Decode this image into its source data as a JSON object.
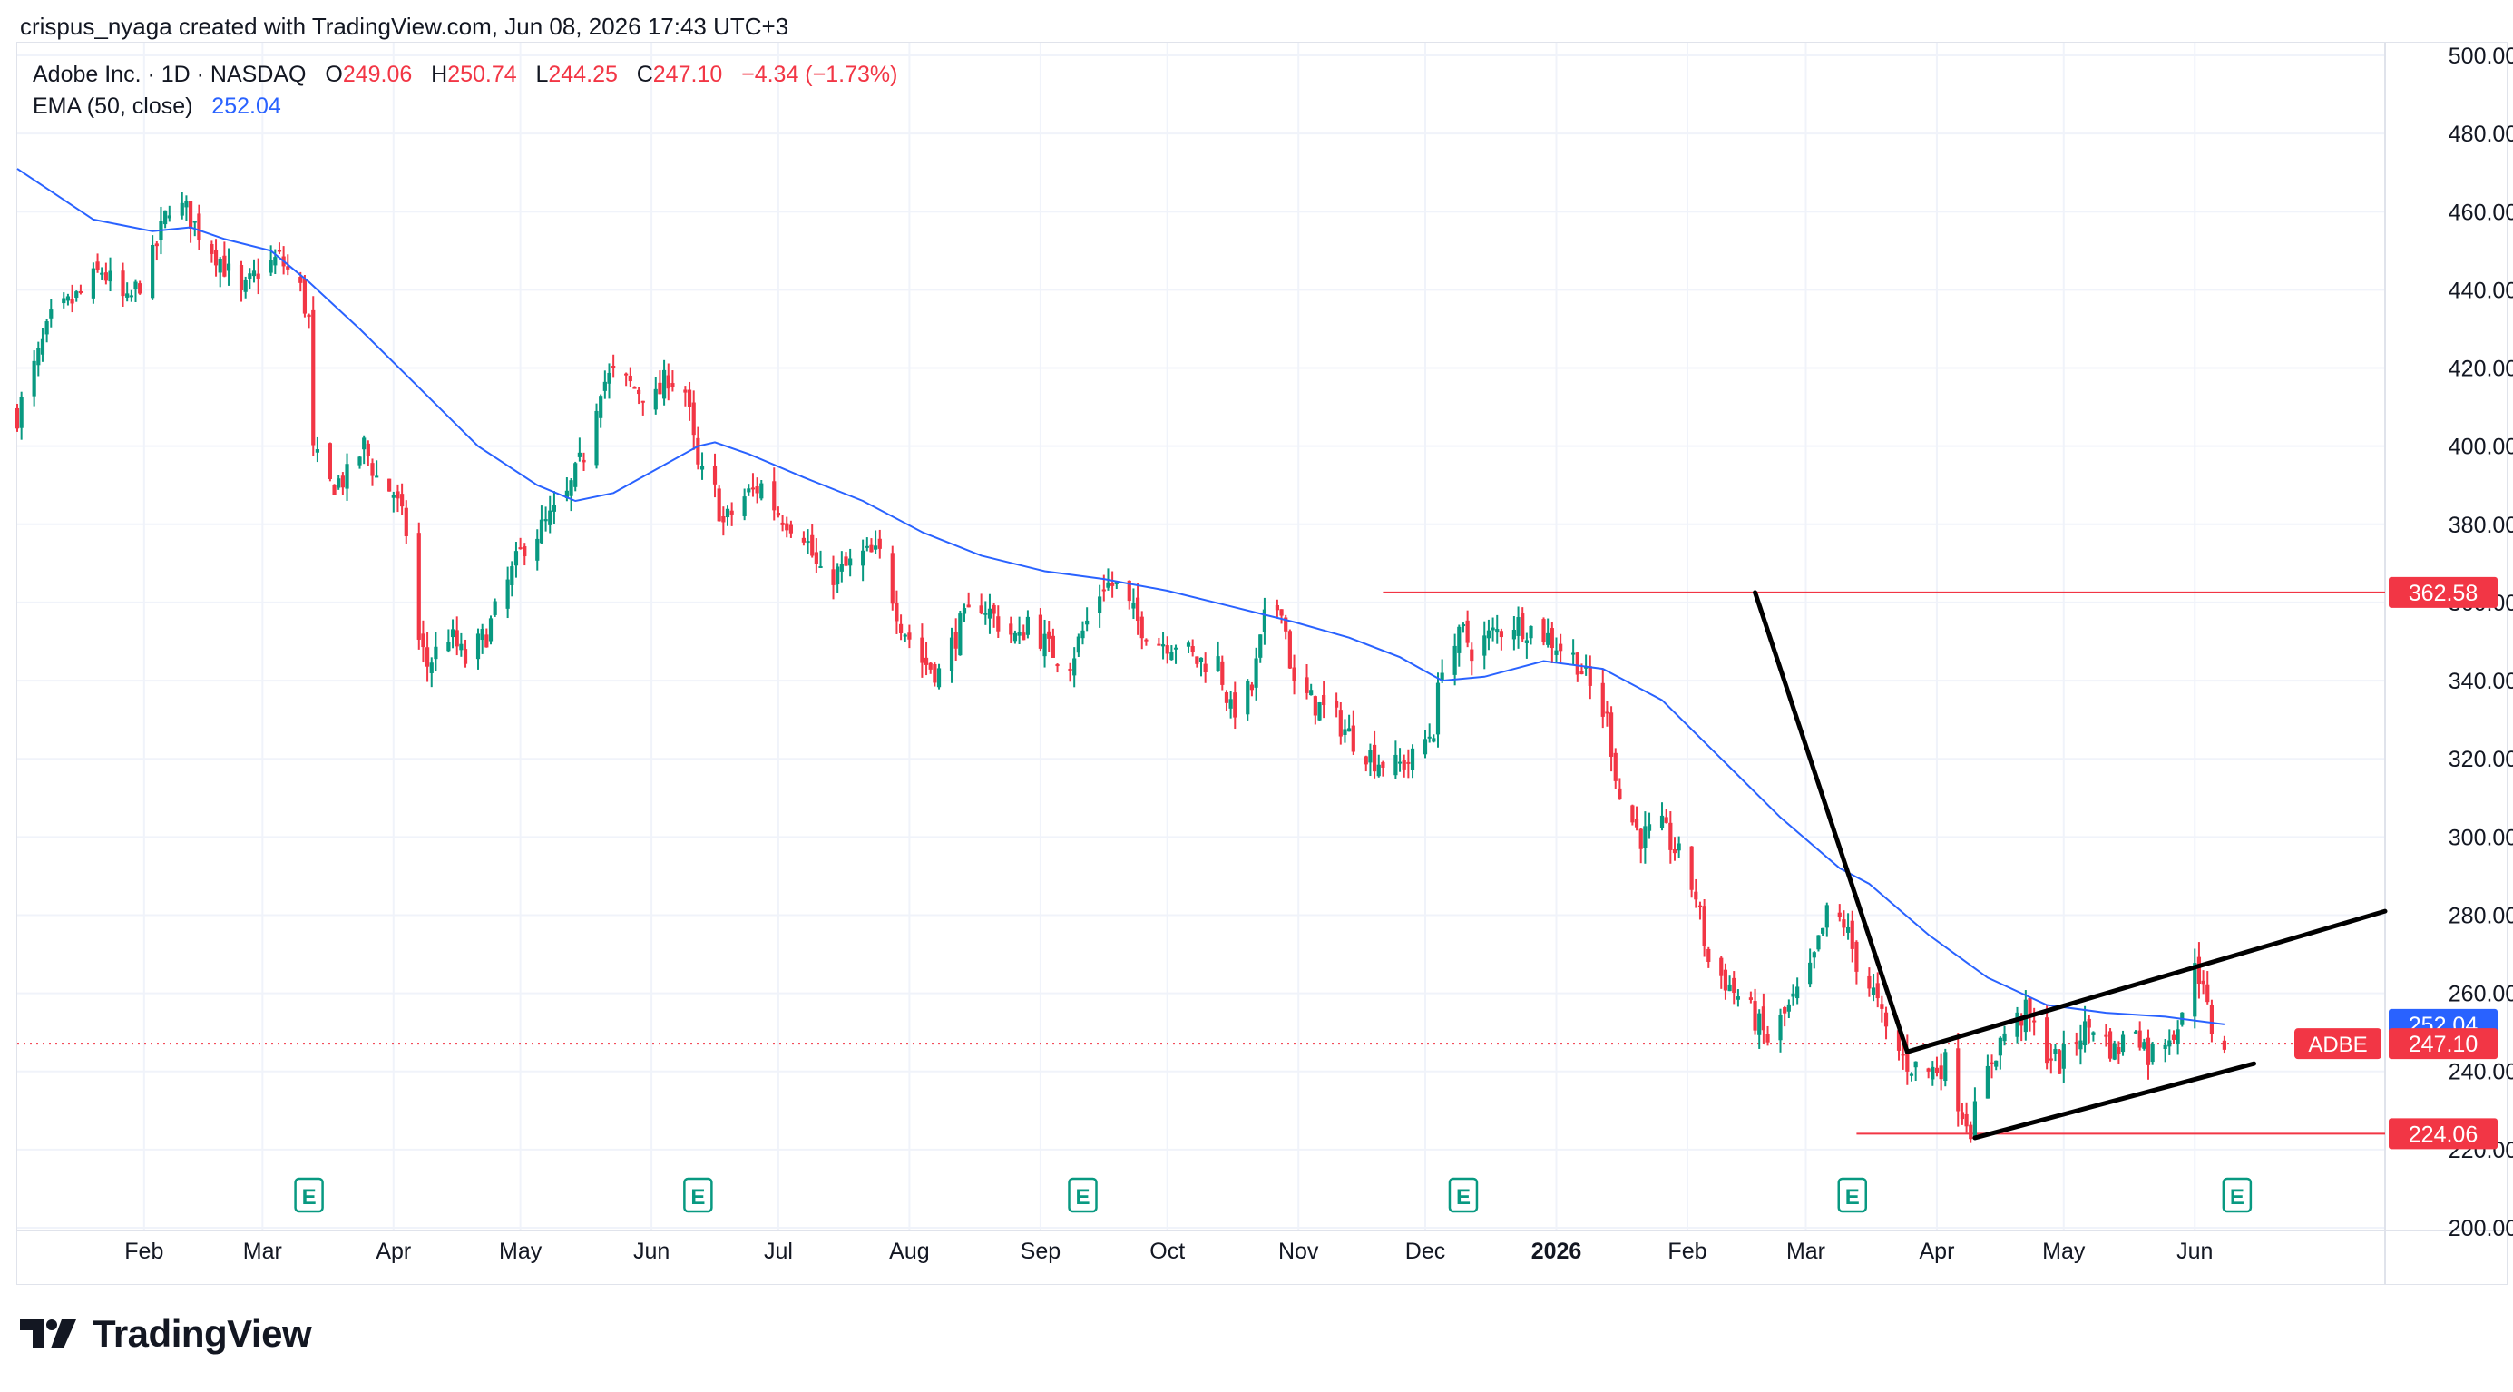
{
  "header": {
    "text": "crispus_nyaga created with TradingView.com, Jun 08, 2026 17:43 UTC+3"
  },
  "legend": {
    "symbol": "Adobe Inc. · 1D · NASDAQ",
    "o_label": "O",
    "o_value": "249.06",
    "h_label": "H",
    "h_value": "250.74",
    "l_label": "L",
    "l_value": "244.25",
    "c_label": "C",
    "c_value": "247.10",
    "change": "−4.34 (−1.73%)",
    "ema_label": "EMA (50, close)",
    "ema_value": "252.04"
  },
  "footer": {
    "brand": "TradingView"
  },
  "colors": {
    "up": "#089981",
    "down": "#f23645",
    "ema": "#2962ff",
    "grid": "#f0f3fa",
    "axis_text": "#131722"
  },
  "chart_data": {
    "type": "candlestick",
    "symbol": "ADBE",
    "ylim": [
      200,
      500
    ],
    "y_ticks": [
      "200.00",
      "220.00",
      "240.00",
      "260.00",
      "280.00",
      "300.00",
      "320.00",
      "340.00",
      "360.00",
      "380.00",
      "400.00",
      "420.00",
      "440.00",
      "460.00",
      "480.00",
      "500.00"
    ],
    "x_ticks": [
      {
        "label": "Feb",
        "date": "2025-02-01"
      },
      {
        "label": "Mar",
        "date": "2025-03-01"
      },
      {
        "label": "Apr",
        "date": "2025-04-01"
      },
      {
        "label": "May",
        "date": "2025-05-01"
      },
      {
        "label": "Jun",
        "date": "2025-06-01"
      },
      {
        "label": "Jul",
        "date": "2025-07-01"
      },
      {
        "label": "Aug",
        "date": "2025-08-01"
      },
      {
        "label": "Sep",
        "date": "2025-09-01"
      },
      {
        "label": "Oct",
        "date": "2025-10-01"
      },
      {
        "label": "Nov",
        "date": "2025-11-01"
      },
      {
        "label": "Dec",
        "date": "2025-12-01"
      },
      {
        "label": "2026",
        "date": "2026-01-01",
        "bold": true
      },
      {
        "label": "Feb",
        "date": "2026-02-01"
      },
      {
        "label": "Mar",
        "date": "2026-03-01"
      },
      {
        "label": "Apr",
        "date": "2026-04-01"
      },
      {
        "label": "May",
        "date": "2026-05-01"
      },
      {
        "label": "Jun",
        "date": "2026-06-01"
      }
    ],
    "x_range": [
      "2025-01-02",
      "2026-07-16"
    ],
    "price_path": [
      [
        "2025-01-02",
        408
      ],
      [
        "2025-01-06",
        420
      ],
      [
        "2025-01-10",
        432
      ],
      [
        "2025-01-16",
        438
      ],
      [
        "2025-01-22",
        445
      ],
      [
        "2025-01-28",
        436
      ],
      [
        "2025-02-03",
        448
      ],
      [
        "2025-02-07",
        462
      ],
      [
        "2025-02-11",
        460
      ],
      [
        "2025-02-14",
        455
      ],
      [
        "2025-02-19",
        448
      ],
      [
        "2025-02-24",
        438
      ],
      [
        "2025-02-28",
        445
      ],
      [
        "2025-03-05",
        448
      ],
      [
        "2025-03-10",
        440
      ],
      [
        "2025-03-12",
        432
      ],
      [
        "2025-03-13",
        398
      ],
      [
        "2025-03-17",
        390
      ],
      [
        "2025-03-21",
        392
      ],
      [
        "2025-03-25",
        400
      ],
      [
        "2025-03-28",
        392
      ],
      [
        "2025-04-01",
        388
      ],
      [
        "2025-04-04",
        378
      ],
      [
        "2025-04-07",
        350
      ],
      [
        "2025-04-09",
        344
      ],
      [
        "2025-04-14",
        352
      ],
      [
        "2025-04-18",
        345
      ],
      [
        "2025-04-23",
        352
      ],
      [
        "2025-04-28",
        365
      ],
      [
        "2025-05-02",
        375
      ],
      [
        "2025-05-07",
        380
      ],
      [
        "2025-05-12",
        387
      ],
      [
        "2025-05-16",
        398
      ],
      [
        "2025-05-20",
        416
      ],
      [
        "2025-05-23",
        418
      ],
      [
        "2025-05-28",
        415
      ],
      [
        "2025-06-02",
        412
      ],
      [
        "2025-06-05",
        418
      ],
      [
        "2025-06-09",
        414
      ],
      [
        "2025-06-12",
        394
      ],
      [
        "2025-06-16",
        388
      ],
      [
        "2025-06-18",
        380
      ],
      [
        "2025-06-23",
        387
      ],
      [
        "2025-06-27",
        390
      ],
      [
        "2025-07-01",
        383
      ],
      [
        "2025-07-07",
        378
      ],
      [
        "2025-07-11",
        366
      ],
      [
        "2025-07-16",
        368
      ],
      [
        "2025-07-21",
        372
      ],
      [
        "2025-07-25",
        372
      ],
      [
        "2025-07-30",
        355
      ],
      [
        "2025-08-04",
        345
      ],
      [
        "2025-08-08",
        342
      ],
      [
        "2025-08-13",
        354
      ],
      [
        "2025-08-18",
        360
      ],
      [
        "2025-08-22",
        355
      ],
      [
        "2025-08-27",
        350
      ],
      [
        "2025-08-29",
        356
      ],
      [
        "2025-09-03",
        348
      ],
      [
        "2025-09-08",
        345
      ],
      [
        "2025-09-12",
        355
      ],
      [
        "2025-09-16",
        365
      ],
      [
        "2025-09-19",
        364
      ],
      [
        "2025-09-24",
        355
      ],
      [
        "2025-09-29",
        350
      ],
      [
        "2025-10-03",
        350
      ],
      [
        "2025-10-08",
        345
      ],
      [
        "2025-10-13",
        345
      ],
      [
        "2025-10-16",
        332
      ],
      [
        "2025-10-21",
        338
      ],
      [
        "2025-10-24",
        355
      ],
      [
        "2025-10-28",
        360
      ],
      [
        "2025-10-31",
        338
      ],
      [
        "2025-11-05",
        334
      ],
      [
        "2025-11-10",
        330
      ],
      [
        "2025-11-14",
        325
      ],
      [
        "2025-11-19",
        320
      ],
      [
        "2025-11-24",
        318
      ],
      [
        "2025-11-28",
        320
      ],
      [
        "2025-12-03",
        328
      ],
      [
        "2025-12-05",
        345
      ],
      [
        "2025-12-10",
        352
      ],
      [
        "2025-12-12",
        348
      ],
      [
        "2025-12-17",
        352
      ],
      [
        "2025-12-22",
        355
      ],
      [
        "2025-12-29",
        352
      ],
      [
        "2026-01-06",
        345
      ],
      [
        "2026-01-09",
        338
      ],
      [
        "2026-01-13",
        330
      ],
      [
        "2026-01-16",
        310
      ],
      [
        "2026-01-21",
        300
      ],
      [
        "2026-01-26",
        302
      ],
      [
        "2026-01-30",
        295
      ],
      [
        "2026-02-03",
        285
      ],
      [
        "2026-02-06",
        268
      ],
      [
        "2026-02-11",
        262
      ],
      [
        "2026-02-16",
        255
      ],
      [
        "2026-02-20",
        248
      ],
      [
        "2026-02-25",
        256
      ],
      [
        "2026-03-02",
        265
      ],
      [
        "2026-03-06",
        280
      ],
      [
        "2026-03-10",
        278
      ],
      [
        "2026-03-13",
        268
      ],
      [
        "2026-03-17",
        260
      ],
      [
        "2026-03-20",
        250
      ],
      [
        "2026-03-25",
        242
      ],
      [
        "2026-03-30",
        240
      ],
      [
        "2026-04-03",
        242
      ],
      [
        "2026-04-07",
        230
      ],
      [
        "2026-04-09",
        226
      ],
      [
        "2026-04-14",
        243
      ],
      [
        "2026-04-17",
        250
      ],
      [
        "2026-04-22",
        255
      ],
      [
        "2026-04-27",
        245
      ],
      [
        "2026-04-30",
        242
      ],
      [
        "2026-05-05",
        250
      ],
      [
        "2026-05-08",
        252
      ],
      [
        "2026-05-13",
        245
      ],
      [
        "2026-05-18",
        252
      ],
      [
        "2026-05-21",
        244
      ],
      [
        "2026-05-26",
        250
      ],
      [
        "2026-05-29",
        253
      ],
      [
        "2026-06-01",
        270
      ],
      [
        "2026-06-03",
        260
      ],
      [
        "2026-06-05",
        251
      ],
      [
        "2026-06-08",
        247
      ]
    ],
    "ema_path": [
      [
        "2025-01-02",
        471
      ],
      [
        "2025-01-20",
        458
      ],
      [
        "2025-02-03",
        455
      ],
      [
        "2025-02-12",
        456
      ],
      [
        "2025-02-20",
        453
      ],
      [
        "2025-03-03",
        450
      ],
      [
        "2025-03-12",
        442
      ],
      [
        "2025-03-24",
        430
      ],
      [
        "2025-04-07",
        415
      ],
      [
        "2025-04-21",
        400
      ],
      [
        "2025-05-05",
        390
      ],
      [
        "2025-05-14",
        386
      ],
      [
        "2025-05-23",
        388
      ],
      [
        "2025-06-02",
        394
      ],
      [
        "2025-06-12",
        400
      ],
      [
        "2025-06-16",
        401
      ],
      [
        "2025-06-24",
        398
      ],
      [
        "2025-07-07",
        392
      ],
      [
        "2025-07-21",
        386
      ],
      [
        "2025-08-04",
        378
      ],
      [
        "2025-08-18",
        372
      ],
      [
        "2025-09-02",
        368
      ],
      [
        "2025-09-16",
        366
      ],
      [
        "2025-10-01",
        363
      ],
      [
        "2025-10-16",
        359
      ],
      [
        "2025-10-31",
        355
      ],
      [
        "2025-11-13",
        351
      ],
      [
        "2025-11-25",
        346
      ],
      [
        "2025-12-05",
        340
      ],
      [
        "2025-12-15",
        341
      ],
      [
        "2025-12-29",
        345
      ],
      [
        "2026-01-12",
        343
      ],
      [
        "2026-01-26",
        335
      ],
      [
        "2026-02-09",
        320
      ],
      [
        "2026-02-23",
        305
      ],
      [
        "2026-03-09",
        292
      ],
      [
        "2026-03-16",
        288
      ],
      [
        "2026-03-30",
        275
      ],
      [
        "2026-04-13",
        264
      ],
      [
        "2026-04-27",
        257
      ],
      [
        "2026-05-11",
        255
      ],
      [
        "2026-05-25",
        254
      ],
      [
        "2026-06-08",
        252.04
      ]
    ],
    "horizontal_lines": [
      {
        "value": 362.58,
        "from": "2025-11-21",
        "to": "2026-07-16",
        "color": "#f23645"
      },
      {
        "value": 224.06,
        "from": "2026-03-13",
        "to": "2026-07-16",
        "color": "#f23645"
      }
    ],
    "trend_lines": [
      {
        "x1": "2026-02-17",
        "y1": 362.58,
        "x2": "2026-03-25",
        "y2": 245
      },
      {
        "x1": "2026-03-25",
        "y1": 245,
        "x2": "2026-07-16",
        "y2": 281
      },
      {
        "x1": "2026-04-10",
        "y1": 223,
        "x2": "2026-06-15",
        "y2": 242
      }
    ],
    "current_price": 247.1,
    "price_labels": [
      {
        "text": "362.58",
        "value": 362.58,
        "bg": "#f23645"
      },
      {
        "text": "252.04",
        "value": 252.04,
        "bg": "#2962ff"
      },
      {
        "text": "247.10",
        "value": 247.1,
        "bg": "#f23645"
      },
      {
        "text": "224.06",
        "value": 224.06,
        "bg": "#f23645"
      }
    ],
    "symbol_tag": "ADBE",
    "earnings_markers": [
      {
        "label": "E",
        "date": "2025-03-12"
      },
      {
        "label": "E",
        "date": "2025-06-12"
      },
      {
        "label": "E",
        "date": "2025-09-11"
      },
      {
        "label": "E",
        "date": "2025-12-10"
      },
      {
        "label": "E",
        "date": "2026-03-12"
      },
      {
        "label": "E",
        "date": "2026-06-11"
      }
    ]
  }
}
